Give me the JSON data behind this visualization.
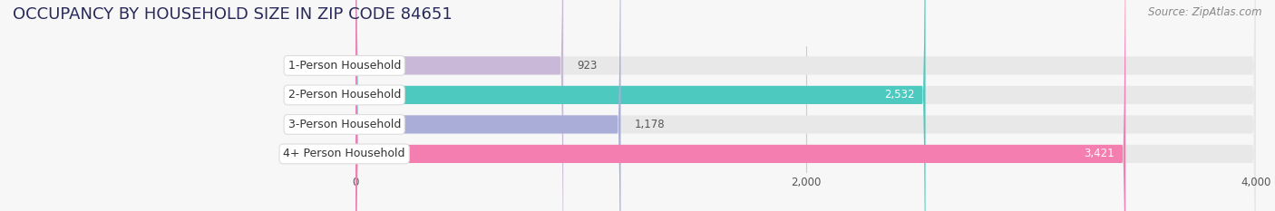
{
  "title": "OCCUPANCY BY HOUSEHOLD SIZE IN ZIP CODE 84651",
  "source": "Source: ZipAtlas.com",
  "categories": [
    "1-Person Household",
    "2-Person Household",
    "3-Person Household",
    "4+ Person Household"
  ],
  "values": [
    923,
    2532,
    1178,
    3421
  ],
  "bar_colors": [
    "#c9b8d8",
    "#4ec9c0",
    "#aaadd8",
    "#f47eb0"
  ],
  "bar_bg_color": "#e8e8e8",
  "xlim_min": -900,
  "xlim_max": 4000,
  "data_xlim": [
    0,
    4000
  ],
  "xticks": [
    0,
    2000,
    4000
  ],
  "title_fontsize": 13,
  "source_fontsize": 8.5,
  "label_fontsize": 9,
  "value_fontsize": 8.5,
  "background_color": "#f7f7f7",
  "title_color": "#2a2a5a",
  "bar_height": 0.62
}
